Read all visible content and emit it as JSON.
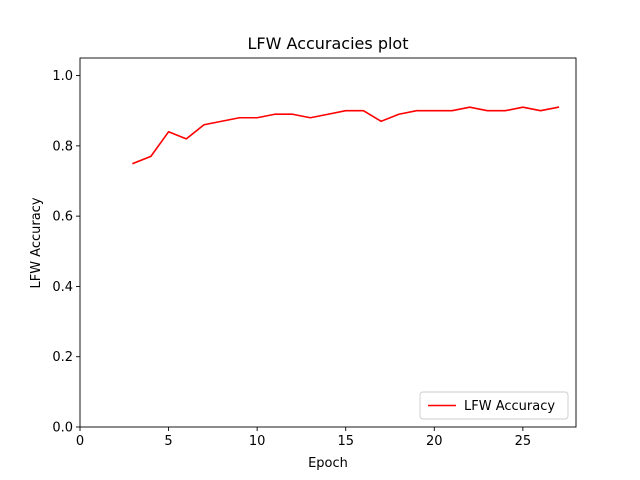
{
  "chart_data": {
    "type": "line",
    "title": "LFW Accuracies plot",
    "xlabel": "Epoch",
    "ylabel": "LFW Accuracy",
    "xlim": [
      0,
      28
    ],
    "ylim": [
      0.0,
      1.05
    ],
    "xticks": [
      0,
      5,
      10,
      15,
      20,
      25
    ],
    "yticks": [
      0.0,
      0.2,
      0.4,
      0.6,
      0.8,
      1.0
    ],
    "xtick_labels": [
      "0",
      "5",
      "10",
      "15",
      "20",
      "25"
    ],
    "ytick_labels": [
      "0.0",
      "0.2",
      "0.4",
      "0.6",
      "0.8",
      "1.0"
    ],
    "grid": false,
    "legend_position": "bottom-right",
    "series": [
      {
        "name": "LFW Accuracy",
        "color": "#ff0000",
        "x": [
          3,
          4,
          5,
          6,
          7,
          8,
          9,
          10,
          11,
          12,
          13,
          14,
          15,
          16,
          17,
          18,
          19,
          20,
          21,
          22,
          23,
          24,
          25,
          26,
          27
        ],
        "y": [
          0.75,
          0.77,
          0.84,
          0.82,
          0.86,
          0.87,
          0.88,
          0.88,
          0.89,
          0.89,
          0.88,
          0.89,
          0.9,
          0.9,
          0.87,
          0.89,
          0.9,
          0.9,
          0.9,
          0.91,
          0.9,
          0.9,
          0.91,
          0.9,
          0.91
        ]
      }
    ]
  }
}
